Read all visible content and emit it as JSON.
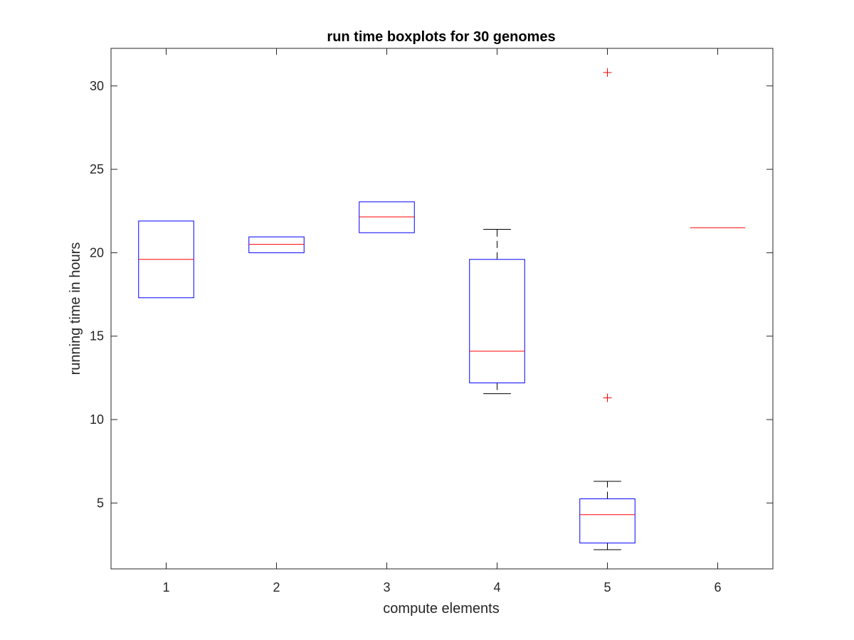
{
  "chart_data": {
    "type": "boxplot",
    "title": "run time boxplots for 30 genomes",
    "xlabel": "compute elements",
    "ylabel": "running time in hours",
    "xlim": [
      0.5,
      6.5
    ],
    "ylim": [
      1.05,
      32.25
    ],
    "categories": [
      "1",
      "2",
      "3",
      "4",
      "5",
      "6"
    ],
    "yticks": [
      5,
      10,
      15,
      20,
      25,
      30
    ],
    "grid": false,
    "boxes": [
      {
        "category": "1",
        "q1": 17.3,
        "median": 19.6,
        "q3": 21.9,
        "whisker_low": 17.3,
        "whisker_high": 21.9,
        "outliers": []
      },
      {
        "category": "2",
        "q1": 20.0,
        "median": 20.5,
        "q3": 20.95,
        "whisker_low": 20.0,
        "whisker_high": 20.95,
        "outliers": []
      },
      {
        "category": "3",
        "q1": 21.2,
        "median": 22.15,
        "q3": 23.05,
        "whisker_low": 21.2,
        "whisker_high": 23.05,
        "outliers": []
      },
      {
        "category": "4",
        "q1": 12.2,
        "median": 14.1,
        "q3": 19.6,
        "whisker_low": 11.55,
        "whisker_high": 21.4,
        "outliers": []
      },
      {
        "category": "5",
        "q1": 2.6,
        "median": 4.3,
        "q3": 5.25,
        "whisker_low": 2.2,
        "whisker_high": 6.3,
        "outliers": [
          11.3,
          30.8
        ]
      },
      {
        "category": "6",
        "q1": 21.5,
        "median": 21.5,
        "q3": 21.5,
        "whisker_low": 21.5,
        "whisker_high": 21.5,
        "outliers": []
      }
    ],
    "colors": {
      "box": "#0000ff",
      "median": "#ff0000",
      "whisker": "#000000",
      "outlier": "#ff0000",
      "axes": "#262626"
    }
  }
}
